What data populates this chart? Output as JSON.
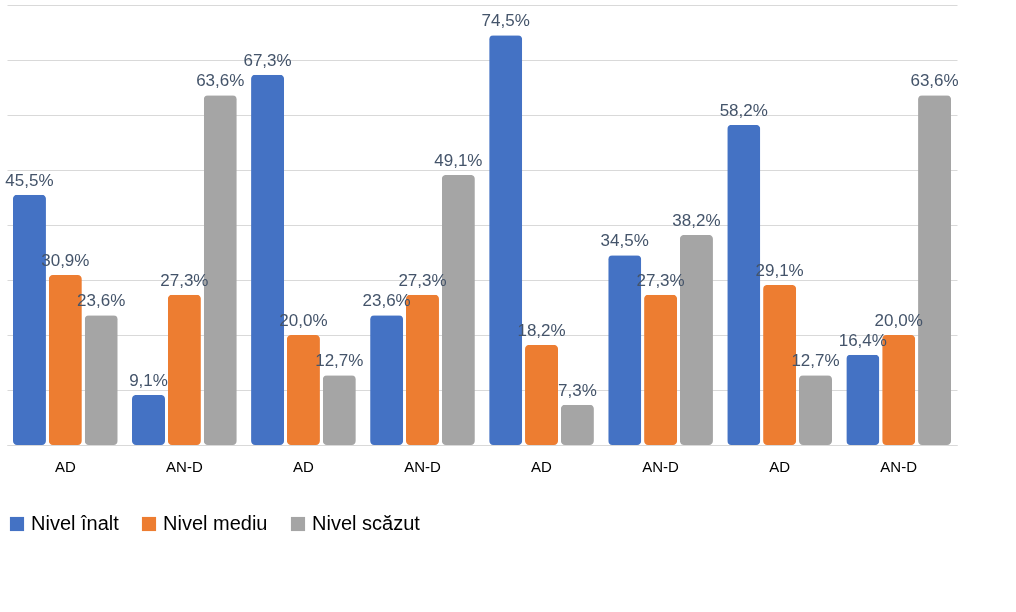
{
  "chart_data": {
    "type": "bar",
    "categories": [
      "AD",
      "AN-D",
      "AD",
      "AN-D",
      "AD",
      "AN-D",
      "AD",
      "AN-D"
    ],
    "series": [
      {
        "name": "Nivel înalt",
        "color": "#4472c4",
        "values": [
          45.5,
          9.1,
          67.3,
          23.6,
          74.5,
          34.5,
          58.2,
          16.4
        ],
        "value_labels": [
          "45,5%",
          "9,1%",
          "67,3%",
          "23,6%",
          "74,5%",
          "34,5%",
          "58,2%",
          "16,4%"
        ]
      },
      {
        "name": "Nivel mediu",
        "color": "#ed7d31",
        "values": [
          30.9,
          27.3,
          20.0,
          27.3,
          18.2,
          27.3,
          29.1,
          20.0
        ],
        "value_labels": [
          "30,9%",
          "27,3%",
          "20,0%",
          "27,3%",
          "18,2%",
          "27,3%",
          "29,1%",
          "20,0%"
        ]
      },
      {
        "name": "Nivel scăzut",
        "color": "#a5a5a5",
        "values": [
          23.6,
          63.6,
          12.7,
          49.1,
          7.3,
          38.2,
          12.7,
          63.6
        ],
        "value_labels": [
          "23,6%",
          "63,6%",
          "12,7%",
          "49,1%",
          "7,3%",
          "38,2%",
          "12,7%",
          "63,6%"
        ]
      }
    ],
    "ylim": [
      0,
      80
    ],
    "yticks": [
      0,
      10,
      20,
      30,
      40,
      50,
      60,
      70,
      80
    ],
    "grid": "y",
    "tick_labels": "x",
    "legend": "bottom"
  }
}
